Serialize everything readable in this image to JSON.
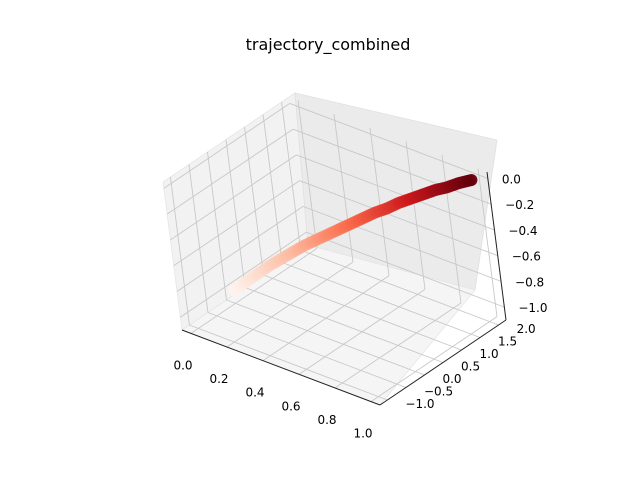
{
  "chart_data": {
    "type": "scatter",
    "projection": "3d",
    "title": "trajectory_combined",
    "xlabel": "",
    "ylabel": "",
    "zlabel": "",
    "grid": true,
    "xlim": [
      -0.05,
      1.05
    ],
    "ylim": [
      -1.2,
      2.2
    ],
    "zlim": [
      -1.1,
      0.05
    ],
    "xticks": [
      "0.0",
      "0.2",
      "0.4",
      "0.6",
      "0.8",
      "1.0"
    ],
    "yticks": [
      "−1.0",
      "−0.5",
      "0.0",
      "0.5",
      "1.0",
      "1.5",
      "2.0"
    ],
    "zticks": [
      "−1.0",
      "−0.8",
      "−0.6",
      "−0.4",
      "−0.2",
      "0.0"
    ],
    "colormap": [
      "#fff5f0",
      "#fcbba1",
      "#fb6a4a",
      "#cb181d",
      "#67000d"
    ],
    "accent_color": "#9acd32",
    "series": [
      {
        "points": [
          {
            "x": 0.0,
            "y": 0.0,
            "z": -1.0
          },
          {
            "x": 0.05,
            "y": 0.1,
            "z": -0.93
          },
          {
            "x": 0.1,
            "y": 0.2,
            "z": -0.86
          },
          {
            "x": 0.15,
            "y": 0.3,
            "z": -0.79
          },
          {
            "x": 0.2,
            "y": 0.4,
            "z": -0.73
          },
          {
            "x": 0.25,
            "y": 0.5,
            "z": -0.67
          },
          {
            "x": 0.3,
            "y": 0.6,
            "z": -0.61
          },
          {
            "x": 0.35,
            "y": 0.7,
            "z": -0.56
          },
          {
            "x": 0.4,
            "y": 0.8,
            "z": -0.51
          },
          {
            "x": 0.45,
            "y": 0.9,
            "z": -0.46
          },
          {
            "x": 0.5,
            "y": 1.0,
            "z": -0.41
          },
          {
            "x": 0.55,
            "y": 1.1,
            "z": -0.36
          },
          {
            "x": 0.6,
            "y": 1.2,
            "z": -0.31
          },
          {
            "x": 0.65,
            "y": 1.3,
            "z": -0.27
          },
          {
            "x": 0.7,
            "y": 1.4,
            "z": -0.22
          },
          {
            "x": 0.75,
            "y": 1.5,
            "z": -0.18
          },
          {
            "x": 0.8,
            "y": 1.6,
            "z": -0.14
          },
          {
            "x": 0.85,
            "y": 1.7,
            "z": -0.1
          },
          {
            "x": 0.9,
            "y": 1.8,
            "z": -0.07
          },
          {
            "x": 0.95,
            "y": 1.9,
            "z": -0.03
          },
          {
            "x": 1.0,
            "y": 2.0,
            "z": 0.0
          }
        ]
      }
    ]
  }
}
